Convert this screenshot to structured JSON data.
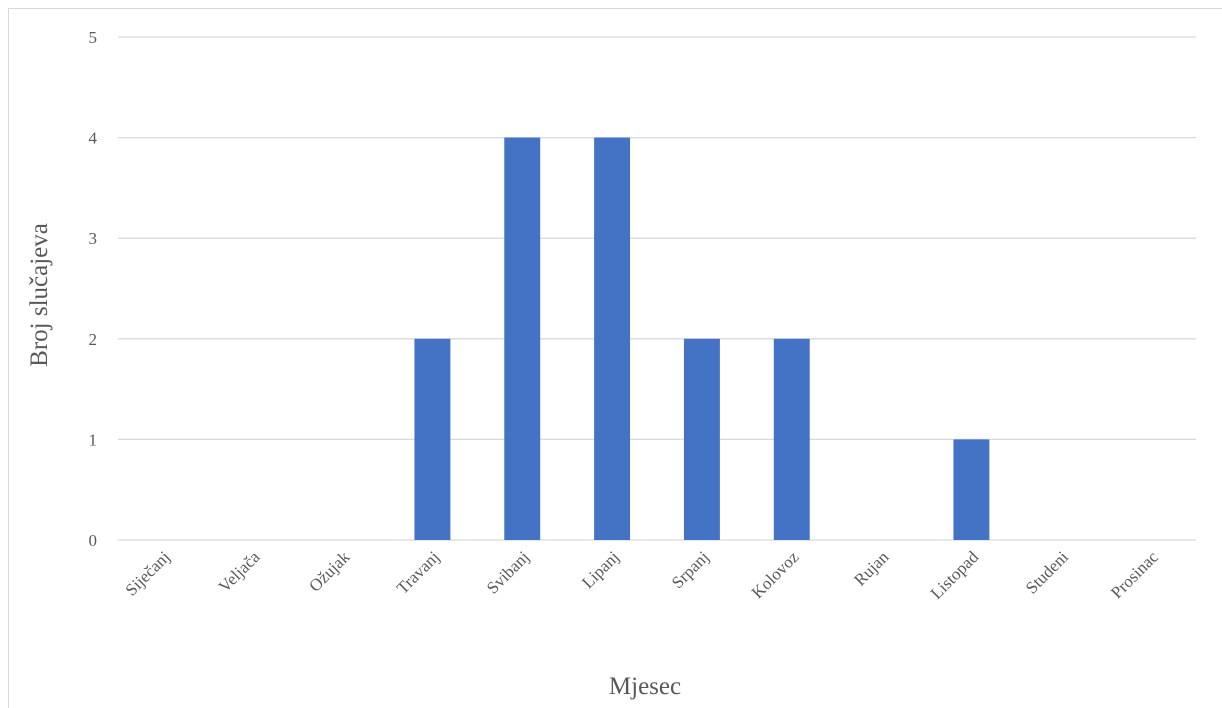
{
  "chart_data": {
    "type": "bar",
    "categories": [
      "Siječanj",
      "Veljača",
      "Ožujak",
      "Travanj",
      "Svibanj",
      "Lipanj",
      "Srpanj",
      "Kolovoz",
      "Rujan",
      "Listopad",
      "Studeni",
      "Prosinac"
    ],
    "series": [
      {
        "values": [
          0,
          0,
          0,
          2,
          4,
          4,
          2,
          2,
          0,
          1,
          0,
          0
        ]
      }
    ],
    "title": "",
    "xlabel": "Mjesec",
    "ylabel": "Broj slučajeva",
    "ylim": [
      0,
      5
    ],
    "yticks": [
      "0",
      "1",
      "2",
      "3",
      "4",
      "5"
    ],
    "grid": true,
    "legend": "none",
    "bar_color": "#4472c4",
    "grid_color": "#d9d9d9",
    "text_color": "#595959"
  }
}
